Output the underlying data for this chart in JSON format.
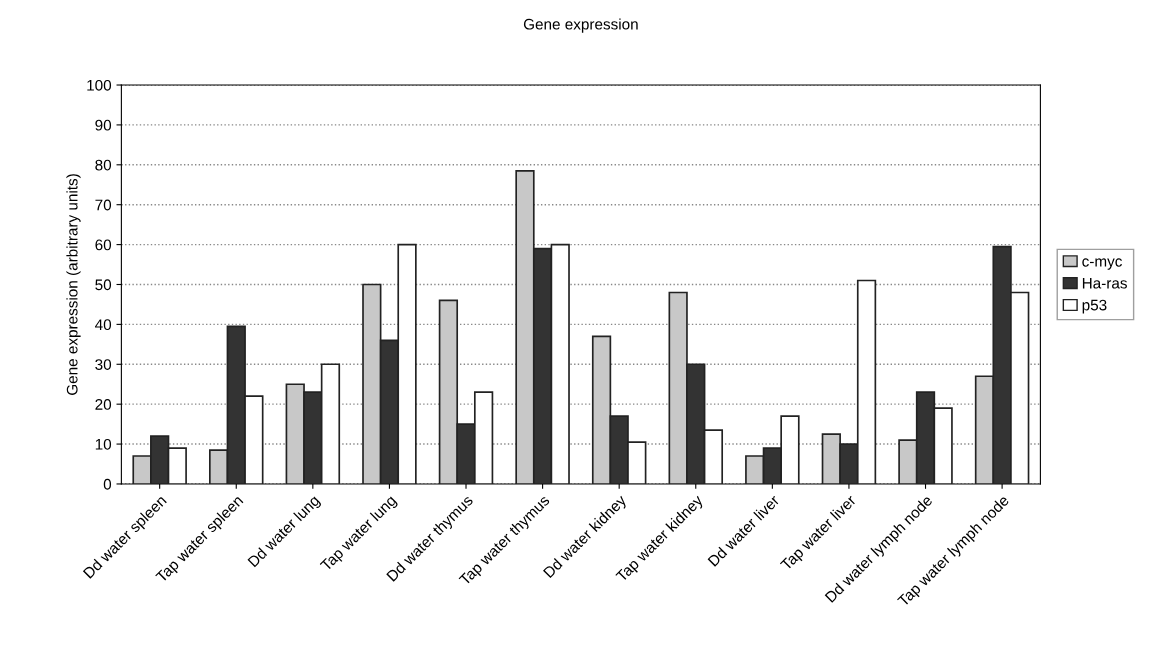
{
  "chart_data": {
    "type": "bar",
    "title": "Gene expression",
    "ylabel": "Gene expression (arbitrary units)",
    "categories": [
      "Dd water spleen",
      "Tap water spleen",
      "Dd water lung",
      "Tap water lung",
      "Dd water thymus",
      "Tap water thymus",
      "Dd water kidney",
      "Tap water kidney",
      "Dd water liver",
      "Tap water liver",
      "Dd water lymph node",
      "Tap water lymph node"
    ],
    "series": [
      {
        "name": "c-myc",
        "color": "#c8c8c8",
        "values": [
          7,
          8.5,
          25,
          50,
          46,
          78.5,
          37,
          48,
          7,
          12.5,
          11,
          27
        ]
      },
      {
        "name": "Ha-ras",
        "color": "#333333",
        "values": [
          12,
          39.5,
          23,
          36,
          15,
          59,
          17,
          30,
          9,
          10,
          23,
          59.5
        ]
      },
      {
        "name": "p53",
        "color": "#ffffff",
        "values": [
          9,
          22,
          30,
          60,
          23,
          60,
          10.5,
          13.5,
          17,
          51,
          19,
          48
        ]
      }
    ],
    "ylim": [
      0,
      100
    ],
    "yticks": [
      0,
      10,
      20,
      30,
      40,
      50,
      60,
      70,
      80,
      90,
      100
    ],
    "grid": "y",
    "legend": "right"
  }
}
